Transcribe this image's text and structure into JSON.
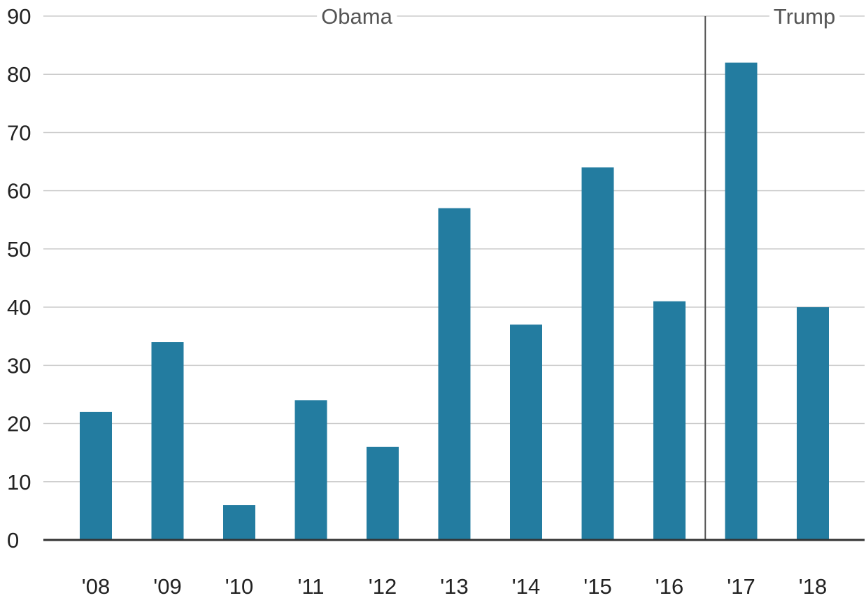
{
  "chart_data": {
    "type": "bar",
    "title": "",
    "xlabel": "",
    "ylabel": "",
    "categories": [
      "'08",
      "'09",
      "'10",
      "'11",
      "'12",
      "'13",
      "'14",
      "'15",
      "'16",
      "'17",
      "'18"
    ],
    "values": [
      22,
      34,
      6,
      24,
      16,
      57,
      37,
      64,
      41,
      82,
      40
    ],
    "ylim": [
      0,
      90
    ],
    "yticks": [
      "0",
      "10",
      "20",
      "30",
      "40",
      "50",
      "60",
      "70",
      "80",
      "90"
    ],
    "grid": true,
    "legend": "none",
    "bar_color": "#237ca0",
    "annotations": {
      "periods": [
        {
          "label": "Obama",
          "start_category": "'08",
          "end_category": "'16"
        },
        {
          "label": "Trump",
          "start_category": "'17",
          "end_category": "'18"
        }
      ],
      "divider_between": [
        "'16",
        "'17"
      ]
    }
  },
  "colors": {
    "grid": "#cccccc",
    "baseline": "#333333",
    "divider": "#555555",
    "tick_text": "#222222",
    "period_text": "#555555"
  }
}
